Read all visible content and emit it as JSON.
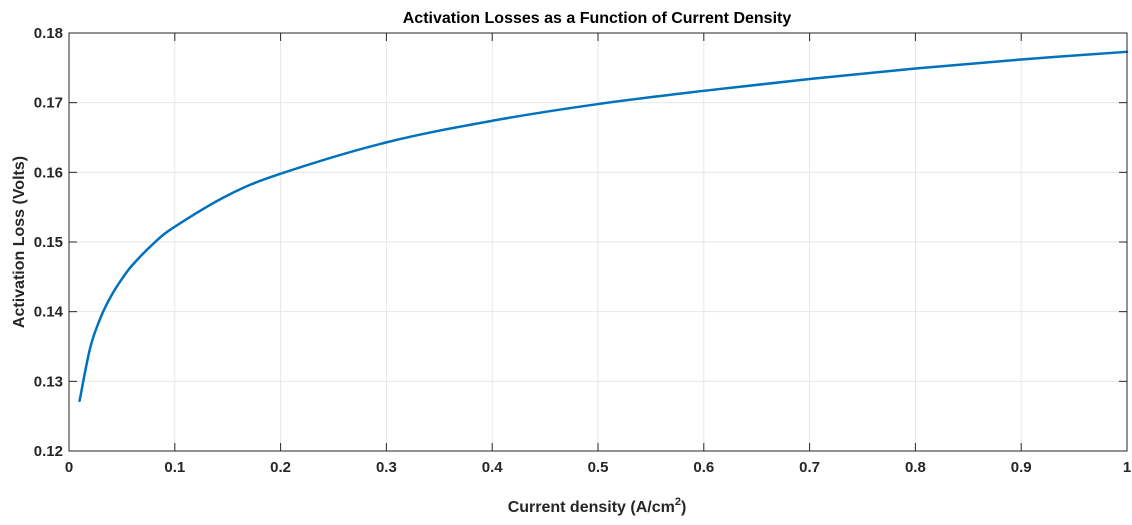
{
  "chart_data": {
    "type": "line",
    "title": "Activation Losses as a Function of Current Density",
    "xlabel": "Current density (A/cm",
    "xlabel_superscript": "2",
    "xlabel_suffix": ")",
    "ylabel": "Activation Loss (Volts)",
    "xlim": [
      0,
      1
    ],
    "ylim": [
      0.12,
      0.18
    ],
    "x_ticks": [
      "0",
      "0.1",
      "0.2",
      "0.3",
      "0.4",
      "0.5",
      "0.6",
      "0.7",
      "0.8",
      "0.9",
      "1"
    ],
    "y_ticks": [
      "0.12",
      "0.13",
      "0.14",
      "0.15",
      "0.16",
      "0.17",
      "0.18"
    ],
    "grid": true,
    "line_color": "#0072BD",
    "series": [
      {
        "x": [
          0.01,
          0.02,
          0.03,
          0.04,
          0.05,
          0.06,
          0.08,
          0.1,
          0.15,
          0.2,
          0.3,
          0.4,
          0.5,
          0.6,
          0.7,
          0.8,
          0.9,
          1.0
        ],
        "y": [
          0.1272,
          0.1348,
          0.1392,
          0.1423,
          0.1447,
          0.1467,
          0.1498,
          0.1522,
          0.1567,
          0.1598,
          0.1643,
          0.1674,
          0.1698,
          0.1717,
          0.1734,
          0.1749,
          0.1762,
          0.1773
        ]
      }
    ]
  }
}
